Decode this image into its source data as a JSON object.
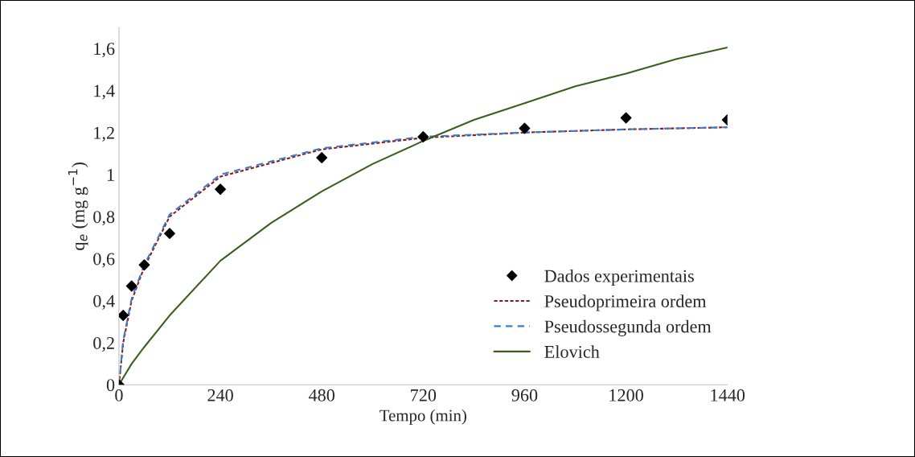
{
  "chart_data": {
    "type": "line",
    "xlabel": "Tempo (min)",
    "ylabel": "q$_{e}$ (mg g$^{−1}$)",
    "xlim": [
      0,
      1440
    ],
    "xticks": [
      0,
      240,
      480,
      720,
      960,
      1200,
      1440
    ],
    "ylim": [
      0,
      1.7
    ],
    "yticks": [
      {
        "value": 0,
        "label": "0"
      },
      {
        "value": 0.2,
        "label": "0,2"
      },
      {
        "value": 0.4,
        "label": "0,4"
      },
      {
        "value": 0.6,
        "label": "0,6"
      },
      {
        "value": 0.8,
        "label": "0,8"
      },
      {
        "value": 1,
        "label": "1"
      },
      {
        "value": 1.2,
        "label": "1,2"
      },
      {
        "value": 1.4,
        "label": "1,4"
      },
      {
        "value": 1.6,
        "label": "1,6"
      }
    ],
    "grid": false,
    "legend": "bottom right",
    "series": [
      {
        "name": "Dados experimentais",
        "type": "scatter",
        "marker": "diamond",
        "color": "#000000",
        "x": [
          0,
          10,
          30,
          60,
          120,
          240,
          480,
          720,
          960,
          1200,
          1440
        ],
        "values": [
          0,
          0.33,
          0.47,
          0.57,
          0.72,
          0.93,
          1.08,
          1.18,
          1.22,
          1.27,
          1.26
        ]
      },
      {
        "name": "Pseudoprimeira ordem",
        "line_style": "dotted",
        "color": "#8b1a1a",
        "x": [
          0,
          10,
          30,
          60,
          120,
          240,
          480,
          720,
          960,
          1200,
          1440
        ],
        "values": [
          0,
          0.2,
          0.4,
          0.56,
          0.8,
          0.99,
          1.12,
          1.175,
          1.2,
          1.215,
          1.225
        ]
      },
      {
        "name": "Pseudossegunda ordem",
        "line_style": "dashed",
        "color": "#3a7cc8",
        "x": [
          0,
          10,
          30,
          60,
          120,
          240,
          480,
          720,
          960,
          1200,
          1440
        ],
        "values": [
          0,
          0.21,
          0.41,
          0.57,
          0.81,
          1.0,
          1.125,
          1.18,
          1.2,
          1.215,
          1.225
        ]
      },
      {
        "name": "Elovich",
        "line_style": "solid",
        "color": "#3a5f1e",
        "x": [
          0,
          30,
          60,
          120,
          240,
          360,
          480,
          600,
          720,
          840,
          960,
          1080,
          1200,
          1320,
          1440
        ],
        "values": [
          0,
          0.1,
          0.18,
          0.33,
          0.59,
          0.77,
          0.92,
          1.05,
          1.16,
          1.26,
          1.34,
          1.42,
          1.48,
          1.55,
          1.605
        ]
      }
    ]
  }
}
